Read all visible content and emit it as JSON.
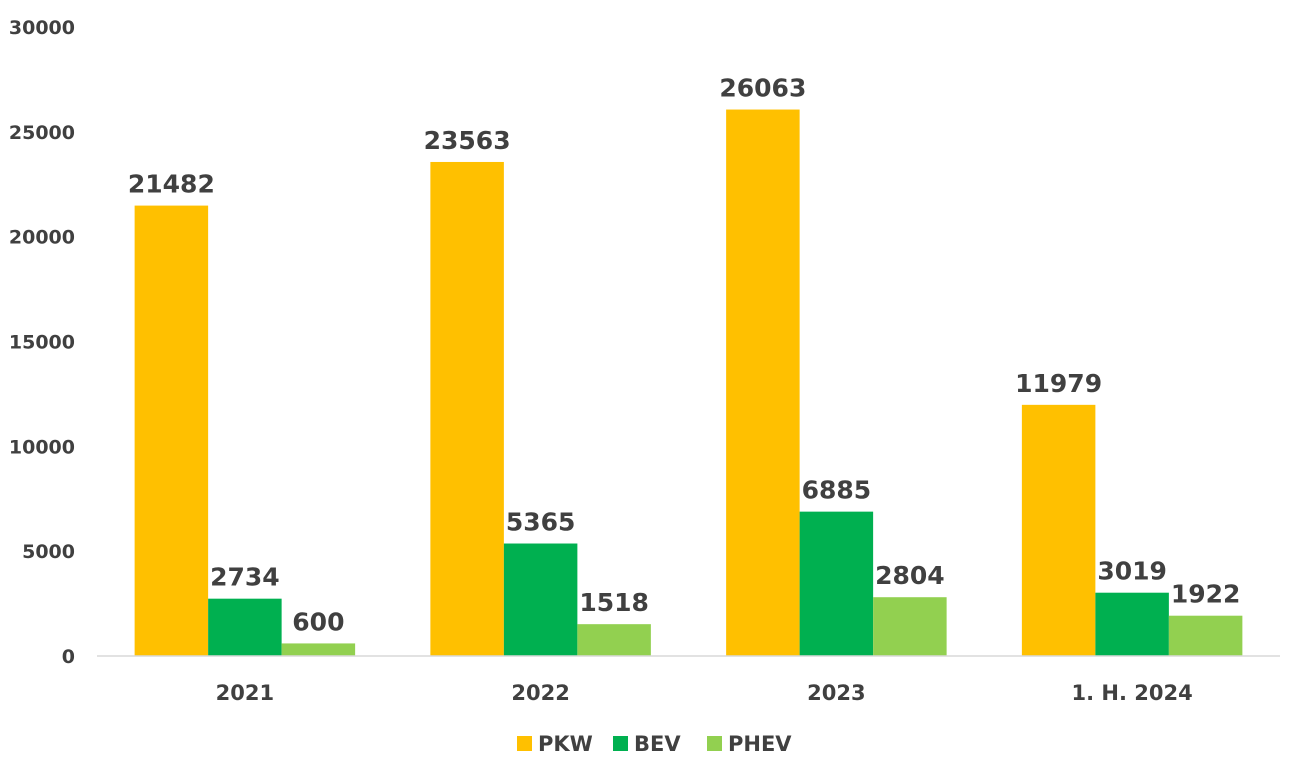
{
  "chart_data": {
    "type": "bar",
    "title": "",
    "xlabel": "",
    "ylabel": "",
    "categories": [
      "2021",
      "2022",
      "2023",
      "1. H. 2024"
    ],
    "series": [
      {
        "name": "PKW",
        "color": "#ffc000",
        "values": [
          21482,
          23563,
          26063,
          11979
        ]
      },
      {
        "name": "BEV",
        "color": "#00b050",
        "values": [
          2734,
          5365,
          6885,
          3019
        ]
      },
      {
        "name": "PHEV",
        "color": "#92d050",
        "values": [
          600,
          1518,
          2804,
          1922
        ]
      }
    ],
    "ylim": [
      0,
      30000
    ],
    "yticks": [
      0,
      5000,
      10000,
      15000,
      20000,
      25000,
      30000
    ],
    "grid": false,
    "legend_position": "bottom"
  }
}
